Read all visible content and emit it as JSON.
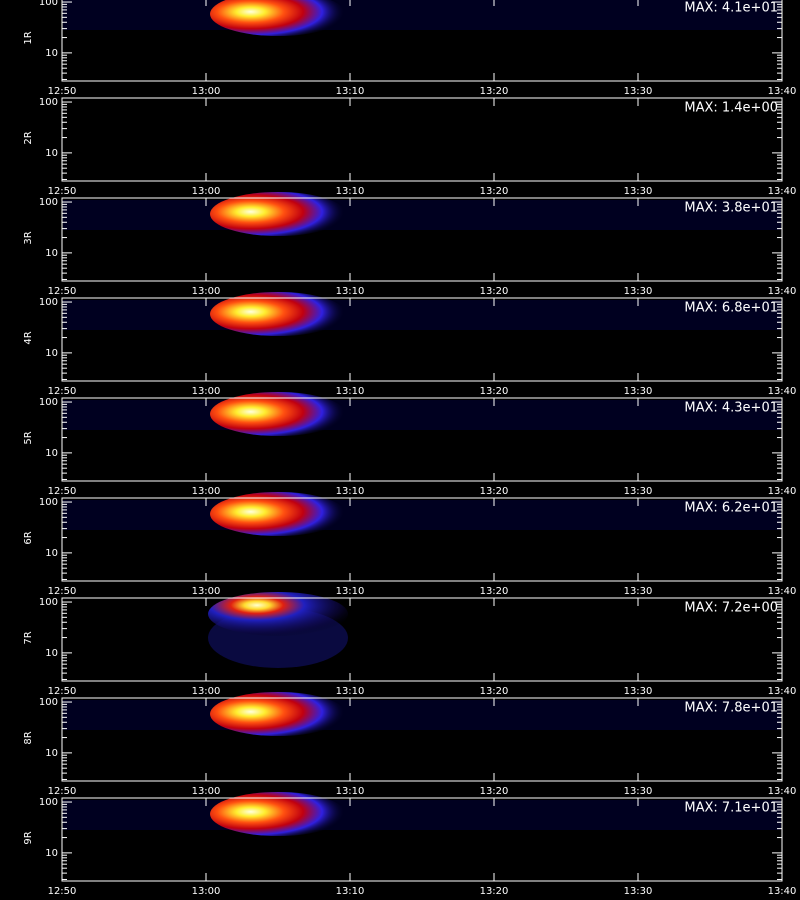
{
  "chart_data": {
    "type": "spectrogram",
    "xlim": [
      770,
      820
    ],
    "xticks": [
      {
        "value": 770,
        "label": "12:50"
      },
      {
        "value": 780,
        "label": "13:00"
      },
      {
        "value": 790,
        "label": "13:10"
      },
      {
        "value": 800,
        "label": "13:20"
      },
      {
        "value": 810,
        "label": "13:30"
      },
      {
        "value": 820,
        "label": "13:40"
      }
    ],
    "ylim": [
      2.8,
      120
    ],
    "log_y": true,
    "yticks": [
      10,
      100
    ],
    "yminorticks": [
      3,
      4,
      5,
      6,
      7,
      8,
      9,
      20,
      30,
      40,
      50,
      60,
      70,
      80,
      90
    ],
    "panels": [
      {
        "label": "1R",
        "max": 41,
        "max_label": "MAX: 4.1e+01"
      },
      {
        "label": "2R",
        "max": 1.4,
        "max_label": "MAX: 1.4e+00"
      },
      {
        "label": "3R",
        "max": 38,
        "max_label": "MAX: 3.8e+01"
      },
      {
        "label": "4R",
        "max": 68,
        "max_label": "MAX: 6.8e+01"
      },
      {
        "label": "5R",
        "max": 43,
        "max_label": "MAX: 4.3e+01"
      },
      {
        "label": "6R",
        "max": 62,
        "max_label": "MAX: 6.2e+01"
      },
      {
        "label": "7R",
        "max": 7.2,
        "max_label": "MAX: 7.2e+00"
      },
      {
        "label": "8R",
        "max": 78,
        "max_label": "MAX: 7.8e+01"
      },
      {
        "label": "9R",
        "max": 71,
        "max_label": "MAX: 7.1e+01"
      }
    ]
  }
}
